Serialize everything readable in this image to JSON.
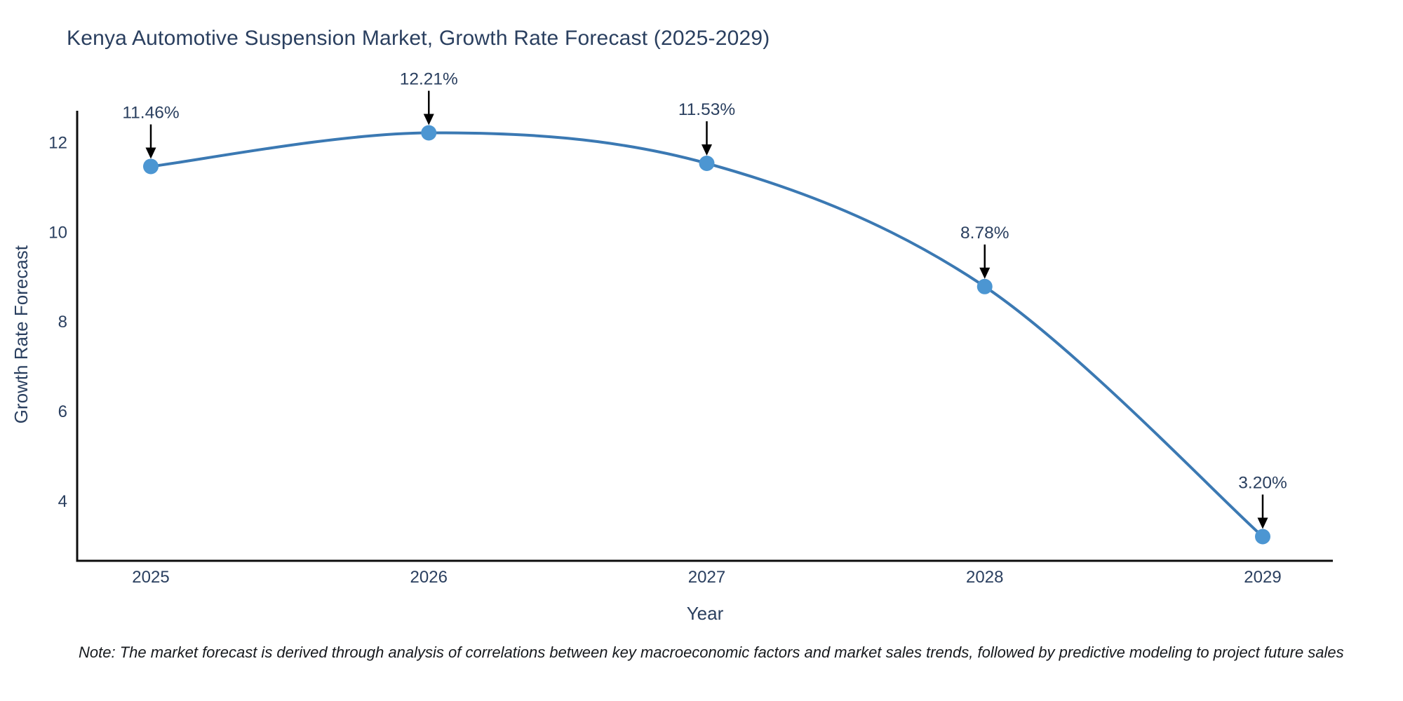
{
  "chart_data": {
    "type": "line",
    "title": "Kenya Automotive Suspension Market, Growth Rate Forecast (2025-2029)",
    "xlabel": "Year",
    "ylabel": "Growth Rate Forecast",
    "x": [
      2025,
      2026,
      2027,
      2028,
      2029
    ],
    "series": [
      {
        "name": "Growth Rate Forecast",
        "values": [
          11.46,
          12.21,
          11.53,
          8.78,
          3.2
        ]
      }
    ],
    "data_labels": [
      "11.46%",
      "12.21%",
      "11.53%",
      "8.78%",
      "3.20%"
    ],
    "y_ticks": [
      4,
      6,
      8,
      10,
      12
    ],
    "ylim": [
      2.66,
      12.75
    ],
    "grid": false,
    "legend_position": "none",
    "line_shape": "spline",
    "colors": {
      "line": "#3b79b3",
      "marker": "#4c96d2",
      "axis_line": "#0d0d0d",
      "tick_text": "#2a3f5f",
      "annotation_text": "#2a3f5f",
      "arrow": "#000000",
      "background": "#ffffff"
    }
  },
  "note": "Note: The market forecast is derived through analysis of correlations between key macroeconomic factors and market sales trends, followed by predictive modeling to project future sales"
}
